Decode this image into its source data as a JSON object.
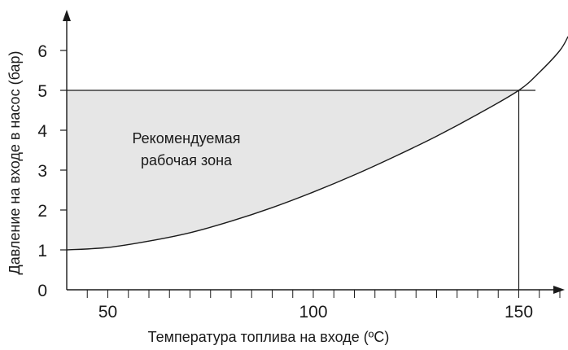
{
  "chart_data": {
    "type": "area",
    "xlabel": "Температура топлива на входе (ºC)",
    "ylabel": "Давление на входе в насос (бар)",
    "xlim": [
      40,
      162
    ],
    "ylim": [
      0,
      6.5
    ],
    "x_ticks": [
      50,
      100,
      150
    ],
    "x_minor_ticks": [
      45,
      50,
      55,
      60,
      65,
      70,
      75,
      80,
      85,
      90,
      95,
      100,
      105,
      110,
      115,
      120,
      125,
      130,
      135,
      140,
      145,
      150,
      155,
      160
    ],
    "y_ticks": [
      0,
      1,
      2,
      3,
      4,
      5,
      6
    ],
    "grid": false,
    "annotation_lines": [
      "Рекомендуемая",
      "рабочая зона"
    ],
    "reference_line": {
      "y": 5,
      "x": 150
    },
    "series": [
      {
        "x": [
          40,
          50,
          60,
          70,
          80,
          90,
          100,
          110,
          120,
          130,
          140,
          150,
          155,
          160,
          162
        ],
        "values": [
          1.0,
          1.06,
          1.22,
          1.43,
          1.72,
          2.06,
          2.45,
          2.88,
          3.35,
          3.85,
          4.4,
          5.0,
          5.45,
          6.0,
          6.35
        ]
      }
    ],
    "recommended_zone": {
      "x_from": 40,
      "x_to": 150,
      "y_max": 5
    },
    "colors": {
      "zone_fill": "#e6e6e6",
      "line": "#1a1a1a"
    }
  }
}
